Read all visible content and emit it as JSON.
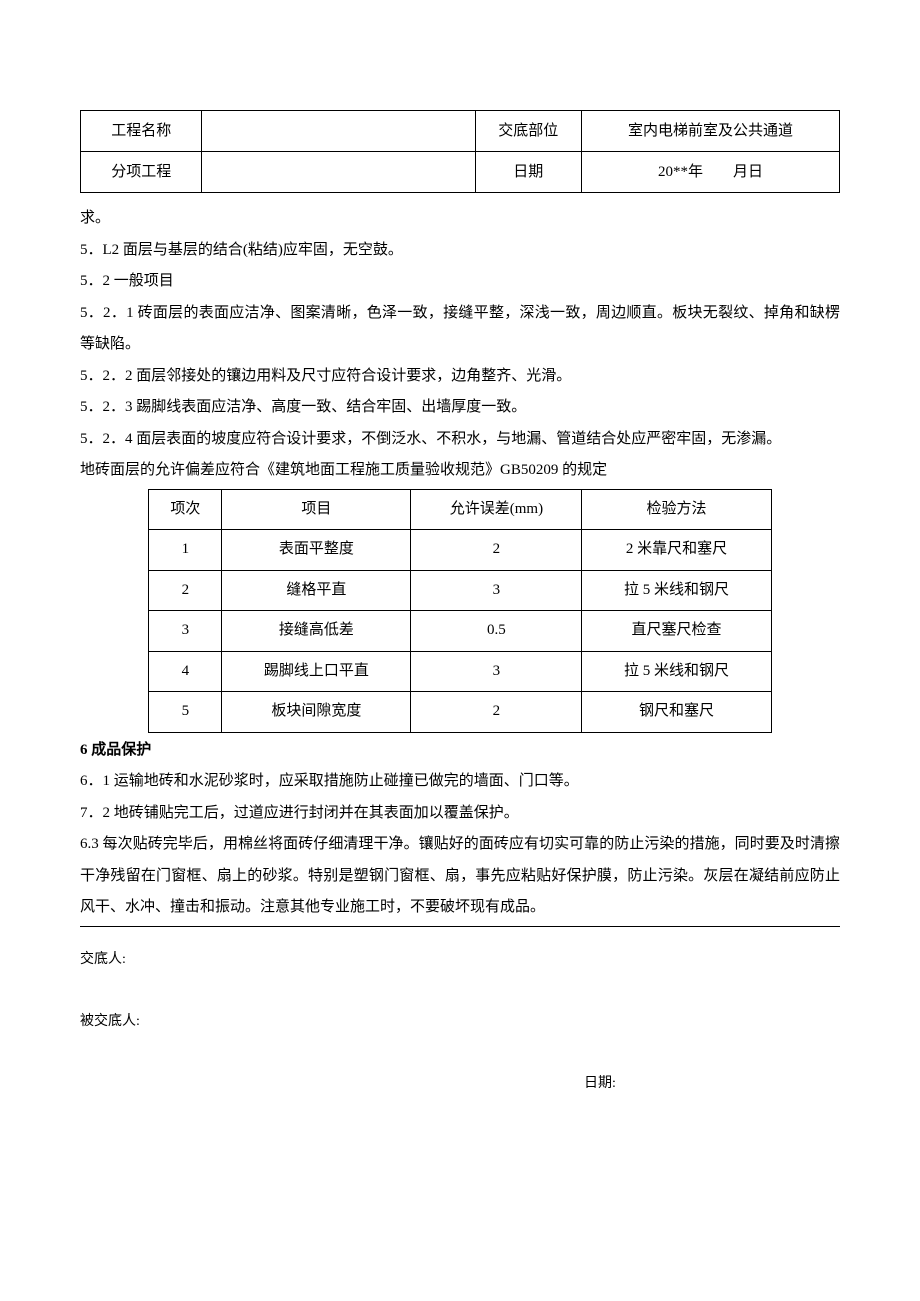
{
  "header": {
    "row1": {
      "label_left": "工程名称",
      "value_left": "",
      "label_right": "交底部位",
      "value_right": "室内电梯前室及公共通道"
    },
    "row2": {
      "label_left": "分项工程",
      "value_left": "",
      "label_right": "日期",
      "value_right": "20**年　　月日"
    }
  },
  "paragraphs": {
    "p0": "求。",
    "p1": "5．L2 面层与基层的结合(粘结)应牢固，无空鼓。",
    "p2": "5．2 一般项目",
    "p3": "5．2．1 砖面层的表面应洁净、图案清晰，色泽一致，接缝平整，深浅一致，周边顺直。板块无裂纹、掉角和缺楞等缺陷。",
    "p4": "5．2．2 面层邻接处的镶边用料及尺寸应符合设计要求，边角整齐、光滑。",
    "p5": "5．2．3 踢脚线表面应洁净、高度一致、结合牢固、出墙厚度一致。",
    "p6": "5．2．4 面层表面的坡度应符合设计要求，不倒泛水、不积水，与地漏、管道结合处应严密牢固，无渗漏。",
    "p7": "地砖面层的允许偏差应符合《建筑地面工程施工质量验收规范》GB50209 的规定",
    "s6": "6 成品保护",
    "p8": "6．1 运输地砖和水泥砂浆时，应采取措施防止碰撞已做完的墙面、门口等。",
    "p9": "7．2 地砖铺贴完工后，过道应进行封闭并在其表面加以覆盖保护。",
    "p10": "6.3 每次贴砖完毕后，用棉丝将面砖仔细清理干净。镶贴好的面砖应有切实可靠的防止污染的措施，同时要及时清擦干净残留在门窗框、扇上的砂浆。特别是塑钢门窗框、扇，事先应粘贴好保护膜，防止污染。灰层在凝结前应防止风干、水冲、撞击和振动。注意其他专业施工时，不要破坏现有成品。"
  },
  "tol_table": {
    "headers": [
      "项次",
      "项目",
      "允许误差(mm)",
      "检验方法"
    ],
    "rows": [
      [
        "1",
        "表面平整度",
        "2",
        "2 米靠尺和塞尺"
      ],
      [
        "2",
        "缝格平直",
        "3",
        "拉 5 米线和钢尺"
      ],
      [
        "3",
        "接缝高低差",
        "0.5",
        "直尺塞尺检查"
      ],
      [
        "4",
        "踢脚线上口平直",
        "3",
        "拉 5 米线和钢尺"
      ],
      [
        "5",
        "板块间隙宽度",
        "2",
        "钢尺和塞尺"
      ]
    ]
  },
  "sign": {
    "sender": "交底人:",
    "receiver": "被交底人:",
    "date": "日期:"
  }
}
